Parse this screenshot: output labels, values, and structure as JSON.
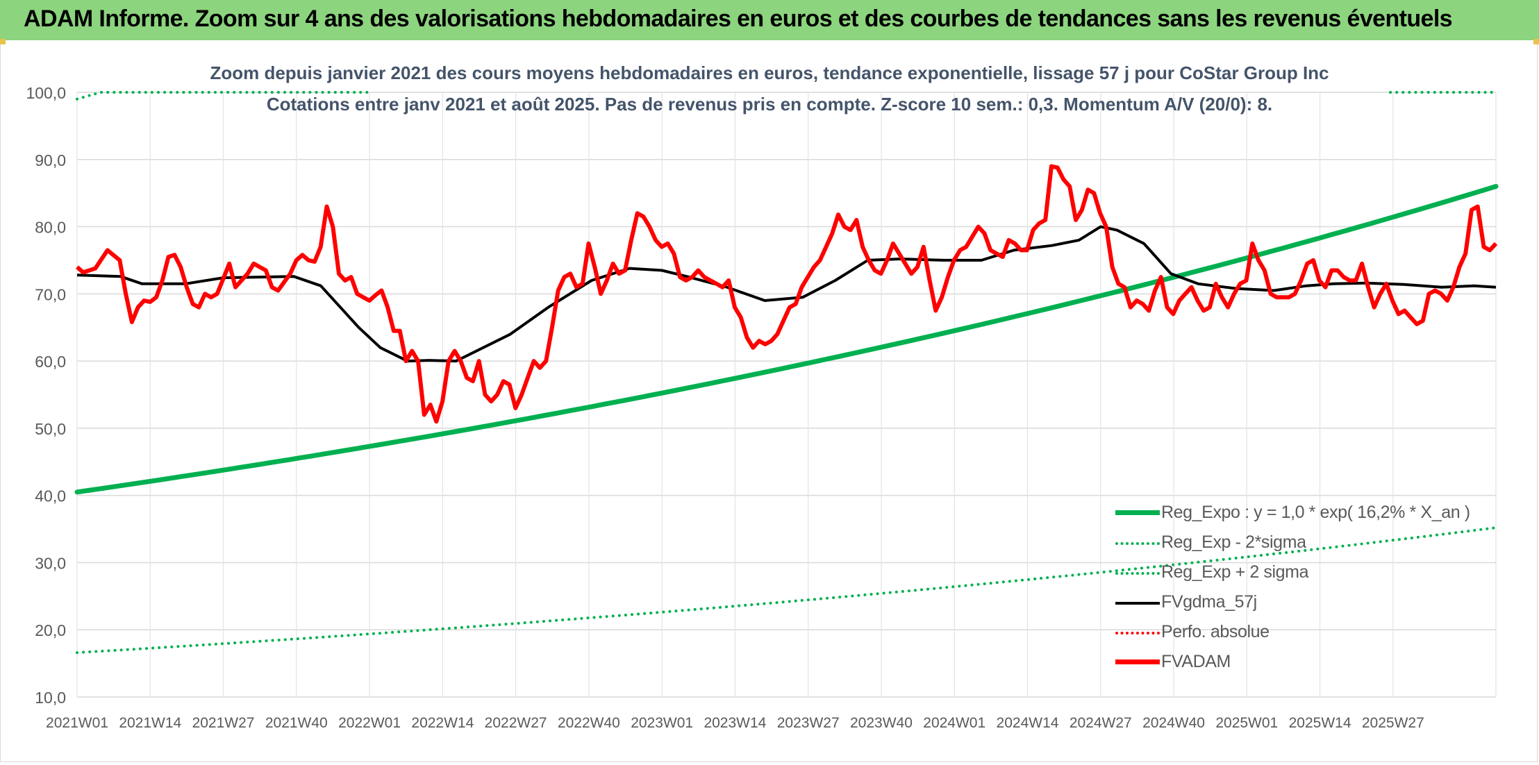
{
  "header": {
    "title": "ADAM Informe. Zoom sur 4 ans des valorisations hebdomadaires en euros et des courbes de tendances sans les revenus éventuels"
  },
  "chart_data": {
    "type": "line",
    "title_line1": "Zoom depuis janvier 2021 des cours moyens hebdomadaires en euros, tendance exponentielle, lissage 57 j pour CoStar Group Inc",
    "title_line2": "Cotations entre janv 2021 et août 2025. Pas de revenus pris en compte. Z-score 10 sem.: 0,3. Momentum A/V (20/0): 8.",
    "ylim": [
      10,
      100
    ],
    "y_ticks": [
      "100,0",
      "90,0",
      "80,0",
      "70,0",
      "60,0",
      "50,0",
      "40,0",
      "30,0",
      "20,0",
      "10,0"
    ],
    "x_tick_labels": [
      "2021W01",
      "2021W14",
      "2021W27",
      "2021W40",
      "2022W01",
      "2022W14",
      "2022W27",
      "2022W40",
      "2023W01",
      "2023W14",
      "2023W27",
      "2023W40",
      "2024W01",
      "2024W14",
      "2024W27",
      "2024W40",
      "2025W01",
      "2025W14",
      "2025W27"
    ],
    "weeks_total": 243,
    "grid": true,
    "legend_position": "bottom-right",
    "series": [
      {
        "name": "Reg_Expo : y = 1,0 * exp( 16,2% *  X_an )",
        "color": "#00b050",
        "style": "solid",
        "width": 7,
        "points": [
          [
            0,
            40.5
          ],
          [
            242,
            86.0
          ]
        ],
        "curve": "exp"
      },
      {
        "name": "Reg_Exp - 2*sigma",
        "color": "#00b050",
        "style": "dotted",
        "width": 4,
        "points": [
          [
            0,
            16.6
          ],
          [
            242,
            35.2
          ]
        ],
        "curve": "exp"
      },
      {
        "name": "Reg_Exp + 2 sigma",
        "color": "#00b050",
        "style": "dotted",
        "width": 4,
        "points": [
          [
            0,
            99.0
          ],
          [
            242,
            100.0
          ]
        ],
        "curve": "flat"
      },
      {
        "name": "FVgdma_57j",
        "color": "#000000",
        "style": "solid",
        "width": 4,
        "points": [
          [
            0,
            72.8
          ],
          [
            8,
            72.6
          ],
          [
            12,
            71.5
          ],
          [
            20,
            71.5
          ],
          [
            27,
            72.4
          ],
          [
            40,
            72.6
          ],
          [
            45,
            71.2
          ],
          [
            52,
            65.0
          ],
          [
            56,
            62.0
          ],
          [
            61,
            60.0
          ],
          [
            65,
            60.1
          ],
          [
            70,
            60.0
          ],
          [
            80,
            64.0
          ],
          [
            87,
            68.0
          ],
          [
            95,
            72.0
          ],
          [
            102,
            73.8
          ],
          [
            108,
            73.5
          ],
          [
            113,
            72.5
          ],
          [
            120,
            71.0
          ],
          [
            127,
            69.0
          ],
          [
            134,
            69.5
          ],
          [
            140,
            72.0
          ],
          [
            146,
            75.0
          ],
          [
            152,
            75.2
          ],
          [
            160,
            75.0
          ],
          [
            167,
            75.0
          ],
          [
            173,
            76.5
          ],
          [
            180,
            77.2
          ],
          [
            185,
            78.0
          ],
          [
            189,
            80.0
          ],
          [
            192,
            79.5
          ],
          [
            197,
            77.5
          ],
          [
            202,
            73.0
          ],
          [
            207,
            71.5
          ],
          [
            214,
            70.8
          ],
          [
            221,
            70.5
          ],
          [
            227,
            71.2
          ],
          [
            232,
            71.5
          ],
          [
            238,
            71.6
          ],
          [
            245,
            71.4
          ],
          [
            252,
            71.0
          ],
          [
            258,
            71.2
          ],
          [
            262,
            71.0
          ]
        ]
      },
      {
        "name": "Perfo. absolue",
        "color": "#ff0000",
        "style": "dotted",
        "width": 4,
        "points": []
      },
      {
        "name": "FVADAM",
        "color": "#ff0000",
        "style": "solid",
        "width": 6,
        "points": [
          [
            0,
            74.0
          ],
          [
            1,
            73.2
          ],
          [
            3,
            73.8
          ],
          [
            5,
            76.5
          ],
          [
            7,
            75.0
          ],
          [
            8,
            70.0
          ],
          [
            9,
            65.8
          ],
          [
            10,
            68.0
          ],
          [
            11,
            69.0
          ],
          [
            12,
            68.8
          ],
          [
            13,
            69.5
          ],
          [
            14,
            72.0
          ],
          [
            15,
            75.5
          ],
          [
            16,
            75.8
          ],
          [
            17,
            74.0
          ],
          [
            18,
            71.0
          ],
          [
            19,
            68.5
          ],
          [
            20,
            68.0
          ],
          [
            21,
            70.0
          ],
          [
            22,
            69.5
          ],
          [
            23,
            70.0
          ],
          [
            25,
            74.5
          ],
          [
            26,
            71.0
          ],
          [
            27,
            72.0
          ],
          [
            28,
            73.0
          ],
          [
            29,
            74.5
          ],
          [
            30,
            74.0
          ],
          [
            31,
            73.5
          ],
          [
            32,
            71.0
          ],
          [
            33,
            70.5
          ],
          [
            35,
            73.0
          ],
          [
            36,
            75.0
          ],
          [
            37,
            75.8
          ],
          [
            38,
            75.0
          ],
          [
            39,
            74.8
          ],
          [
            40,
            77.0
          ],
          [
            41,
            83.0
          ],
          [
            42,
            80.0
          ],
          [
            43,
            73.0
          ],
          [
            44,
            72.0
          ],
          [
            45,
            72.5
          ],
          [
            46,
            70.0
          ],
          [
            47,
            69.5
          ],
          [
            48,
            69.0
          ],
          [
            49,
            69.8
          ],
          [
            50,
            70.5
          ],
          [
            51,
            68.0
          ],
          [
            52,
            64.5
          ],
          [
            53,
            64.5
          ],
          [
            54,
            60.0
          ],
          [
            55,
            61.5
          ],
          [
            56,
            60.0
          ],
          [
            57,
            52.0
          ],
          [
            58,
            53.5
          ],
          [
            59,
            51.0
          ],
          [
            60,
            54.0
          ],
          [
            61,
            60.0
          ],
          [
            62,
            61.5
          ],
          [
            63,
            60.0
          ],
          [
            64,
            57.5
          ],
          [
            65,
            57.0
          ],
          [
            66,
            60.0
          ],
          [
            67,
            55.0
          ],
          [
            68,
            54.0
          ],
          [
            69,
            55.0
          ],
          [
            70,
            57.0
          ],
          [
            71,
            56.5
          ],
          [
            72,
            53.0
          ],
          [
            73,
            55.0
          ],
          [
            74,
            57.5
          ],
          [
            75,
            60.0
          ],
          [
            76,
            59.0
          ],
          [
            77,
            60.0
          ],
          [
            78,
            65.0
          ],
          [
            79,
            70.5
          ],
          [
            80,
            72.5
          ],
          [
            81,
            73.0
          ],
          [
            82,
            71.0
          ],
          [
            83,
            71.5
          ],
          [
            84,
            77.5
          ],
          [
            85,
            74.0
          ],
          [
            86,
            70.0
          ],
          [
            87,
            72.0
          ],
          [
            88,
            74.5
          ],
          [
            89,
            73.0
          ],
          [
            90,
            73.5
          ],
          [
            91,
            78.0
          ],
          [
            92,
            82.0
          ],
          [
            93,
            81.5
          ],
          [
            94,
            80.0
          ],
          [
            95,
            78.0
          ],
          [
            96,
            77.0
          ],
          [
            97,
            77.5
          ],
          [
            98,
            76.0
          ],
          [
            99,
            72.5
          ],
          [
            100,
            72.0
          ],
          [
            101,
            72.5
          ],
          [
            102,
            73.5
          ],
          [
            103,
            72.5
          ],
          [
            104,
            72.0
          ],
          [
            105,
            71.5
          ],
          [
            106,
            71.0
          ],
          [
            107,
            72.0
          ],
          [
            108,
            68.0
          ],
          [
            109,
            66.5
          ],
          [
            110,
            63.5
          ],
          [
            111,
            62.0
          ],
          [
            112,
            63.0
          ],
          [
            113,
            62.5
          ],
          [
            114,
            63.0
          ],
          [
            115,
            64.0
          ],
          [
            116,
            66.0
          ],
          [
            117,
            68.0
          ],
          [
            118,
            68.5
          ],
          [
            119,
            71.0
          ],
          [
            120,
            72.5
          ],
          [
            121,
            74.0
          ],
          [
            122,
            75.0
          ],
          [
            123,
            77.0
          ],
          [
            124,
            79.0
          ],
          [
            125,
            81.8
          ],
          [
            126,
            80.0
          ],
          [
            127,
            79.5
          ],
          [
            128,
            81.0
          ],
          [
            129,
            77.0
          ],
          [
            130,
            75.0
          ],
          [
            131,
            73.5
          ],
          [
            132,
            73.0
          ],
          [
            133,
            75.0
          ],
          [
            134,
            77.5
          ],
          [
            135,
            76.0
          ],
          [
            136,
            74.5
          ],
          [
            137,
            73.0
          ],
          [
            138,
            74.0
          ],
          [
            139,
            77.0
          ],
          [
            140,
            72.0
          ],
          [
            141,
            67.5
          ],
          [
            142,
            69.5
          ],
          [
            143,
            72.5
          ],
          [
            144,
            75.0
          ],
          [
            145,
            76.5
          ],
          [
            146,
            77.0
          ],
          [
            147,
            78.5
          ],
          [
            148,
            80.0
          ],
          [
            149,
            79.0
          ],
          [
            150,
            76.5
          ],
          [
            151,
            76.0
          ],
          [
            152,
            75.5
          ],
          [
            153,
            78.0
          ],
          [
            154,
            77.5
          ],
          [
            155,
            76.5
          ],
          [
            156,
            76.5
          ],
          [
            157,
            79.5
          ],
          [
            158,
            80.5
          ],
          [
            159,
            81.0
          ],
          [
            160,
            89.0
          ],
          [
            161,
            88.8
          ],
          [
            162,
            87.0
          ],
          [
            163,
            86.0
          ],
          [
            164,
            81.0
          ],
          [
            165,
            82.5
          ],
          [
            166,
            85.5
          ],
          [
            167,
            85.0
          ],
          [
            168,
            82.0
          ],
          [
            169,
            80.0
          ],
          [
            170,
            74.0
          ],
          [
            171,
            71.5
          ],
          [
            172,
            71.0
          ],
          [
            173,
            68.0
          ],
          [
            174,
            69.0
          ],
          [
            175,
            68.5
          ],
          [
            176,
            67.5
          ],
          [
            177,
            70.5
          ],
          [
            178,
            72.5
          ],
          [
            179,
            68.0
          ],
          [
            180,
            67.0
          ],
          [
            181,
            69.0
          ],
          [
            182,
            70.0
          ],
          [
            183,
            71.0
          ],
          [
            184,
            69.0
          ],
          [
            185,
            67.5
          ],
          [
            186,
            68.0
          ],
          [
            187,
            71.5
          ],
          [
            188,
            69.5
          ],
          [
            189,
            68.0
          ],
          [
            190,
            70.0
          ],
          [
            191,
            71.5
          ],
          [
            192,
            72.0
          ],
          [
            193,
            77.5
          ],
          [
            194,
            75.0
          ],
          [
            195,
            73.5
          ],
          [
            196,
            70.0
          ],
          [
            197,
            69.5
          ],
          [
            198,
            69.5
          ],
          [
            199,
            69.5
          ],
          [
            200,
            70.0
          ],
          [
            201,
            72.0
          ],
          [
            202,
            74.5
          ],
          [
            203,
            75.0
          ],
          [
            204,
            72.0
          ],
          [
            205,
            71.0
          ],
          [
            206,
            73.5
          ],
          [
            207,
            73.5
          ],
          [
            208,
            72.5
          ],
          [
            209,
            72.0
          ],
          [
            210,
            72.0
          ],
          [
            211,
            74.5
          ],
          [
            212,
            71.0
          ],
          [
            213,
            68.0
          ],
          [
            214,
            70.0
          ],
          [
            215,
            71.5
          ],
          [
            216,
            69.0
          ],
          [
            217,
            67.0
          ],
          [
            218,
            67.5
          ],
          [
            219,
            66.5
          ],
          [
            220,
            65.5
          ],
          [
            221,
            66.0
          ],
          [
            222,
            70.0
          ],
          [
            223,
            70.5
          ],
          [
            224,
            70.0
          ],
          [
            225,
            69.0
          ],
          [
            226,
            71.0
          ],
          [
            227,
            74.0
          ],
          [
            228,
            76.0
          ],
          [
            229,
            82.5
          ],
          [
            230,
            83.0
          ],
          [
            231,
            77.0
          ],
          [
            232,
            76.5
          ],
          [
            233,
            77.5
          ]
        ]
      }
    ]
  }
}
